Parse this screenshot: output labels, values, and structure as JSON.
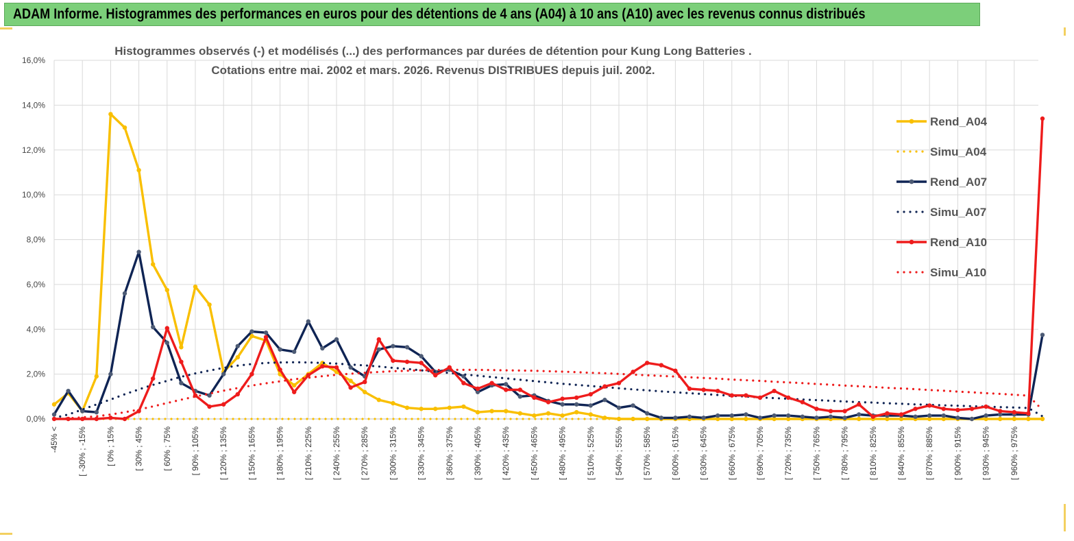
{
  "header": {
    "title": "ADAM Informe. Histogrammes des performances en euros pour des détentions de 4 ans (A04) à 10 ans (A10) avec les revenus connus distribués"
  },
  "chart_data": {
    "type": "line",
    "title_line1": "Histogrammes observés (-) et modélisés (...) des performances par durées de détention pour Kung Long Batteries .",
    "title_line2": "Cotations entre mai. 2002 et mars. 2026. Revenus DISTRIBUES depuis juil. 2002.",
    "ylim": [
      0,
      16
    ],
    "yticks": [
      "0,0%",
      "2,0%",
      "4,0%",
      "6,0%",
      "8,0%",
      "10,0%",
      "12,0%",
      "14,0%",
      "16,0%"
    ],
    "xticklabels": [
      "-45% <",
      "[ -30% ; -15%",
      "[ 0% ; 15%",
      "[ 30% ; 45%",
      "[ 60% ; 75%",
      "[ 90% ; 105%",
      "[ 120% ; 135%",
      "[ 150% ; 165%",
      "[ 180% ; 195%",
      "[ 210% ; 225%",
      "[ 240% ; 255%",
      "[ 270% ; 285%",
      "[ 300% ; 315%",
      "[ 330% ; 345%",
      "[ 360% ; 375%",
      "[ 390% ; 405%",
      "[ 420% ; 435%",
      "[ 450% ; 465%",
      "[ 480% ; 495%",
      "[ 510% ; 525%",
      "[ 540% ; 555%",
      "[ 570% ; 585%",
      "[ 600% ; 615%",
      "[ 630% ; 645%",
      "[ 660% ; 675%",
      "[ 690% ; 705%",
      "[ 720% ; 735%",
      "[ 750% ; 765%",
      "[ 780% ; 795%",
      "[ 810% ; 825%",
      "[ 840% ; 855%",
      "[ 870% ; 885%",
      "[ 900% ; 915%",
      "[ 930% ; 945%",
      "[ 960% ; 975%"
    ],
    "n_points": 71,
    "series": [
      {
        "name": "Rend_A04",
        "style": "solid",
        "color": "#f9bf00",
        "values": [
          0.65,
          1.15,
          0.35,
          1.9,
          13.6,
          13.0,
          11.1,
          6.9,
          5.75,
          3.2,
          5.9,
          5.1,
          2.1,
          2.75,
          3.7,
          3.5,
          2.0,
          1.5,
          2.0,
          2.5,
          2.1,
          1.7,
          1.2,
          0.85,
          0.7,
          0.5,
          0.45,
          0.45,
          0.5,
          0.55,
          0.3,
          0.35,
          0.35,
          0.25,
          0.15,
          0.25,
          0.15,
          0.3,
          0.2,
          0.05,
          0.0,
          0.0,
          0.0,
          0.0,
          0.0,
          0.0,
          0.0,
          0.0,
          0.0,
          0.0,
          0.0,
          0.0,
          0.0,
          0.0,
          0.0,
          0.0,
          0.0,
          0.0,
          0.0,
          0.0,
          0.0,
          0.0,
          0.0,
          0.0,
          0.0,
          0.0,
          0.0,
          0.0,
          0.0,
          0.0,
          0.0
        ]
      },
      {
        "name": "Simu_A04",
        "style": "dotted",
        "color": "#f9bf00",
        "values": [
          0.0,
          0.0,
          0.0,
          0.0,
          0.0,
          0.0,
          0.0,
          0.0,
          0.0,
          0.0,
          0.0,
          0.0,
          0.0,
          0.0,
          0.0,
          0.0,
          0.0,
          0.0,
          0.0,
          0.0,
          0.0,
          0.0,
          0.0,
          0.0,
          0.0,
          0.0,
          0.0,
          0.0,
          0.0,
          0.0,
          0.0,
          0.0,
          0.0,
          0.0,
          0.0,
          0.0,
          0.0,
          0.0,
          0.0,
          0.0,
          0.0,
          0.0,
          0.0,
          0.0,
          0.0,
          0.0,
          0.0,
          0.0,
          0.0,
          0.0,
          0.0,
          0.0,
          0.0,
          0.0,
          0.0,
          0.0,
          0.0,
          0.0,
          0.0,
          0.0,
          0.0,
          0.0,
          0.0,
          0.0,
          0.0,
          0.0,
          0.0,
          0.0,
          0.0,
          0.0,
          0.0
        ]
      },
      {
        "name": "Rend_A07",
        "style": "solid",
        "color": "#0f2454",
        "values": [
          0.2,
          1.25,
          0.35,
          0.3,
          2.0,
          5.6,
          7.45,
          4.1,
          3.4,
          1.6,
          1.25,
          1.05,
          2.0,
          3.25,
          3.9,
          3.85,
          3.1,
          3.0,
          4.35,
          3.15,
          3.55,
          2.3,
          1.9,
          3.1,
          3.25,
          3.2,
          2.8,
          2.1,
          2.2,
          1.9,
          1.2,
          1.5,
          1.55,
          1.0,
          1.05,
          0.8,
          0.65,
          0.65,
          0.6,
          0.85,
          0.5,
          0.6,
          0.25,
          0.05,
          0.05,
          0.1,
          0.05,
          0.15,
          0.15,
          0.2,
          0.05,
          0.15,
          0.15,
          0.1,
          0.05,
          0.1,
          0.05,
          0.2,
          0.15,
          0.15,
          0.15,
          0.1,
          0.15,
          0.15,
          0.05,
          0.0,
          0.15,
          0.2,
          0.2,
          0.2,
          3.75
        ]
      },
      {
        "name": "Simu_A07",
        "style": "dotted",
        "color": "#0f2454",
        "values": [
          0.05,
          0.2,
          0.42,
          0.65,
          0.87,
          1.1,
          1.32,
          1.52,
          1.7,
          1.88,
          2.03,
          2.16,
          2.28,
          2.38,
          2.45,
          2.5,
          2.52,
          2.53,
          2.52,
          2.5,
          2.47,
          2.43,
          2.39,
          2.34,
          2.28,
          2.23,
          2.17,
          2.11,
          2.05,
          1.99,
          1.93,
          1.87,
          1.81,
          1.75,
          1.69,
          1.63,
          1.57,
          1.52,
          1.47,
          1.42,
          1.37,
          1.32,
          1.28,
          1.23,
          1.19,
          1.15,
          1.11,
          1.07,
          1.03,
          1.0,
          0.96,
          0.93,
          0.9,
          0.87,
          0.84,
          0.81,
          0.78,
          0.75,
          0.73,
          0.7,
          0.68,
          0.65,
          0.63,
          0.61,
          0.59,
          0.57,
          0.55,
          0.53,
          0.51,
          0.49,
          0.12
        ]
      },
      {
        "name": "Rend_A10",
        "style": "solid",
        "color": "#ee1c1c",
        "values": [
          0.0,
          0.0,
          0.0,
          0.0,
          0.05,
          0.0,
          0.35,
          1.8,
          4.05,
          2.55,
          1.05,
          0.55,
          0.65,
          1.1,
          2.0,
          3.65,
          2.2,
          1.2,
          1.95,
          2.35,
          2.3,
          1.4,
          1.65,
          3.55,
          2.6,
          2.55,
          2.5,
          1.95,
          2.3,
          1.6,
          1.35,
          1.6,
          1.3,
          1.3,
          0.95,
          0.75,
          0.9,
          0.95,
          1.1,
          1.45,
          1.6,
          2.1,
          2.5,
          2.4,
          2.15,
          1.35,
          1.3,
          1.25,
          1.05,
          1.05,
          0.95,
          1.25,
          0.95,
          0.75,
          0.45,
          0.35,
          0.35,
          0.65,
          0.1,
          0.25,
          0.2,
          0.45,
          0.6,
          0.45,
          0.4,
          0.45,
          0.55,
          0.35,
          0.3,
          0.25,
          13.4
        ]
      },
      {
        "name": "Simu_A10",
        "style": "dotted",
        "color": "#ee1c1c",
        "values": [
          0.0,
          0.03,
          0.07,
          0.12,
          0.2,
          0.3,
          0.42,
          0.56,
          0.71,
          0.86,
          1.0,
          1.13,
          1.26,
          1.38,
          1.49,
          1.59,
          1.68,
          1.77,
          1.84,
          1.91,
          1.97,
          2.02,
          2.06,
          2.1,
          2.13,
          2.15,
          2.17,
          2.18,
          2.19,
          2.19,
          2.19,
          2.18,
          2.17,
          2.16,
          2.15,
          2.13,
          2.11,
          2.09,
          2.06,
          2.04,
          2.01,
          1.98,
          1.95,
          1.92,
          1.89,
          1.86,
          1.83,
          1.8,
          1.76,
          1.73,
          1.7,
          1.66,
          1.63,
          1.6,
          1.56,
          1.53,
          1.49,
          1.46,
          1.43,
          1.39,
          1.36,
          1.33,
          1.29,
          1.26,
          1.22,
          1.19,
          1.15,
          1.12,
          1.08,
          1.04,
          0.4
        ]
      }
    ]
  }
}
